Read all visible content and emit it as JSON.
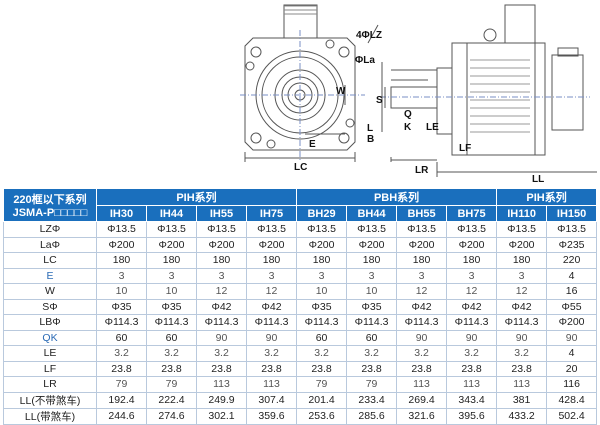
{
  "drawing": {
    "labels": {
      "lz": "4ΦLZ",
      "la": "ΦLa",
      "w": "W",
      "e": "E",
      "lc": "LC",
      "s": "S",
      "q": "Q",
      "k": "K",
      "l": "L",
      "b": "B",
      "le": "LE",
      "lf": "LF",
      "lr": "LR",
      "ll": "LL"
    }
  },
  "table": {
    "corner_line1": "220框以下系列",
    "corner_line2": "JSMA-P□□□□□",
    "groups": [
      {
        "label": "PIH系列",
        "span": 4
      },
      {
        "label": "PBH系列",
        "span": 4
      },
      {
        "label": "PIH系列",
        "span": 2
      }
    ],
    "models": [
      "IH30",
      "IH44",
      "IH55",
      "IH75",
      "BH29",
      "BH44",
      "BH55",
      "BH75",
      "IH110",
      "IH150"
    ],
    "rows": [
      {
        "param": "LZΦ",
        "values": [
          "Φ13.5",
          "Φ13.5",
          "Φ13.5",
          "Φ13.5",
          "Φ13.5",
          "Φ13.5",
          "Φ13.5",
          "Φ13.5",
          "Φ13.5",
          "Φ13.5"
        ]
      },
      {
        "param": "LaΦ",
        "values": [
          "Φ200",
          "Φ200",
          "Φ200",
          "Φ200",
          "Φ200",
          "Φ200",
          "Φ200",
          "Φ200",
          "Φ200",
          "Φ235"
        ]
      },
      {
        "param": "LC",
        "values": [
          "180",
          "180",
          "180",
          "180",
          "180",
          "180",
          "180",
          "180",
          "180",
          "220"
        ]
      },
      {
        "param": "E",
        "values": [
          "3",
          "3",
          "3",
          "3",
          "3",
          "3",
          "3",
          "3",
          "3",
          "4"
        ]
      },
      {
        "param": "W",
        "values": [
          "10",
          "10",
          "12",
          "12",
          "10",
          "10",
          "12",
          "12",
          "12",
          "16"
        ]
      },
      {
        "param": "SΦ",
        "values": [
          "Φ35",
          "Φ35",
          "Φ42",
          "Φ42",
          "Φ35",
          "Φ35",
          "Φ42",
          "Φ42",
          "Φ42",
          "Φ55"
        ]
      },
      {
        "param": "LBΦ",
        "values": [
          "Φ114.3",
          "Φ114.3",
          "Φ114.3",
          "Φ114.3",
          "Φ114.3",
          "Φ114.3",
          "Φ114.3",
          "Φ114.3",
          "Φ114.3",
          "Φ200"
        ]
      },
      {
        "param": "QK",
        "values": [
          "60",
          "60",
          "90",
          "90",
          "60",
          "60",
          "90",
          "90",
          "90",
          "90"
        ]
      },
      {
        "param": "LE",
        "values": [
          "3.2",
          "3.2",
          "3.2",
          "3.2",
          "3.2",
          "3.2",
          "3.2",
          "3.2",
          "3.2",
          "4"
        ]
      },
      {
        "param": "LF",
        "values": [
          "23.8",
          "23.8",
          "23.8",
          "23.8",
          "23.8",
          "23.8",
          "23.8",
          "23.8",
          "23.8",
          "20"
        ]
      },
      {
        "param": "LR",
        "values": [
          "79",
          "79",
          "113",
          "113",
          "79",
          "79",
          "113",
          "113",
          "113",
          "116"
        ]
      },
      {
        "param": "LL(不带煞车)",
        "values": [
          "192.4",
          "222.4",
          "249.9",
          "307.4",
          "201.4",
          "233.4",
          "269.4",
          "343.4",
          "381",
          "428.4"
        ]
      },
      {
        "param": "LL(带煞车)",
        "values": [
          "244.6",
          "274.6",
          "302.1",
          "359.6",
          "253.6",
          "285.6",
          "321.6",
          "395.6",
          "433.2",
          "502.4"
        ]
      }
    ],
    "colors": {
      "header_bg": "#1a6fbd",
      "border": "#b9c9dd"
    }
  }
}
